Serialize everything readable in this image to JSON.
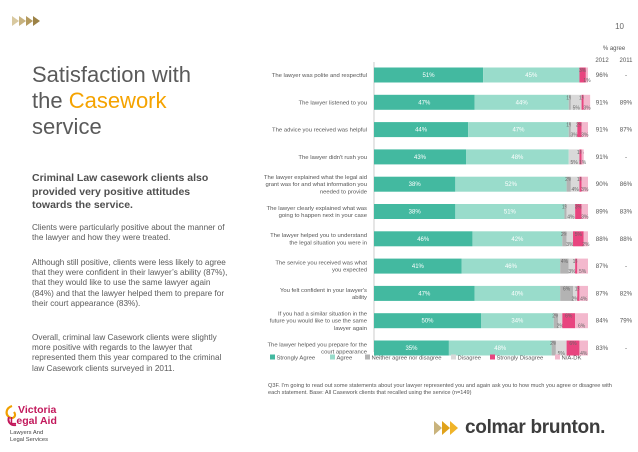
{
  "page_number": "10",
  "title": {
    "line1": "Satisfaction with",
    "line2_plain": "the ",
    "line2_accent": "Casework",
    "line3": "service"
  },
  "lead": "Criminal Law casework clients also provided very positive attitudes towards the service.",
  "paragraphs": [
    "Clients were particularly positive about the manner of the lawyer and how they were treated.",
    "Although still positive, clients were less likely to agree that they were confident in their lawyer’s ability (87%), that they would like to use the same lawyer again (84%) and that the lawyer helped them to prepare for their court appearance (83%).",
    "Overall, criminal law Casework clients were slightly more positive with regards to the lawyer that represented them this year compared to the criminal law Casework clients surveyed in 2011."
  ],
  "logo": {
    "name_line1": "Victoria",
    "name_line2": "Legal Aid",
    "tagline_line1": "Lawyers And",
    "tagline_line2": "Legal Services"
  },
  "brand": "colmar brunton.",
  "footnote": "Q3F. I’m going to read out some statements about your lawyer represented you and again ask you to how much you agree or disagree with each statement. Base: All Casework clients that recalled using the service (n=149)",
  "colors": {
    "strongly_agree": "#43b9a0",
    "agree": "#99dccb",
    "neither": "#b3b3b3",
    "disagree": "#d9d9d9",
    "strongly_disagree": "#e8457f",
    "na_dk": "#f3b8cd"
  },
  "chart_data": {
    "type": "bar",
    "orientation": "horizontal",
    "stacked": true,
    "value_suffix": "%",
    "legend_position": "bottom",
    "summary_header": "% agree",
    "years": [
      "2012",
      "2011"
    ],
    "categories": [
      [
        "The lawyer was polite and respectful"
      ],
      [
        "The lawyer listened to you"
      ],
      [
        "The advice you received was helpful"
      ],
      [
        "The lawyer didn't rush you"
      ],
      [
        "The lawyer explained what the legal aid",
        "grant was for and what information you",
        "needed to provide"
      ],
      [
        "The lawyer clearly explained what was",
        "going to happen next in your case"
      ],
      [
        "The lawyer helped you to understand",
        "the legal situation you were in"
      ],
      [
        "The service you received was what",
        "you expected"
      ],
      [
        "You felt confident in your lawyer's",
        "ability"
      ],
      [
        "If you had a similar situation in the",
        "future you would like to use the same",
        "lawyer again"
      ],
      [
        "The lawyer helped you prepare for the",
        "court appearance"
      ]
    ],
    "series": [
      {
        "name": "Strongly Agree",
        "color_key": "strongly_agree",
        "values": [
          51,
          47,
          44,
          43,
          38,
          38,
          46,
          41,
          47,
          50,
          35
        ]
      },
      {
        "name": "Agree",
        "color_key": "agree",
        "values": [
          45,
          44,
          47,
          48,
          52,
          51,
          42,
          46,
          40,
          34,
          48
        ]
      },
      {
        "name": "Neither agree nor disagree",
        "color_key": "neither",
        "values": [
          0,
          1,
          1,
          0,
          2,
          1,
          2,
          4,
          6,
          2,
          2
        ]
      },
      {
        "name": "Disagree",
        "color_key": "disagree",
        "values": [
          0,
          5,
          3,
          5,
          4,
          4,
          3,
          3,
          2,
          2,
          5
        ]
      },
      {
        "name": "Strongly Disagree",
        "color_key": "strongly_disagree",
        "values": [
          3,
          1,
          2,
          1,
          1,
          3,
          5,
          1,
          1,
          6,
          6
        ]
      },
      {
        "name": "N/A-DK",
        "color_key": "na_dk",
        "values": [
          1,
          3,
          3,
          1,
          3,
          3,
          2,
          5,
          4,
          6,
          4
        ]
      }
    ],
    "agree_2012": [
      "96%",
      "91%",
      "91%",
      "91%",
      "90%",
      "89%",
      "88%",
      "87%",
      "87%",
      "84%",
      "83%"
    ],
    "agree_2011": [
      "-",
      "89%",
      "87%",
      "-",
      "86%",
      "83%",
      "88%",
      "-",
      "82%",
      "79%",
      "-"
    ],
    "xlim": [
      0,
      100
    ]
  }
}
